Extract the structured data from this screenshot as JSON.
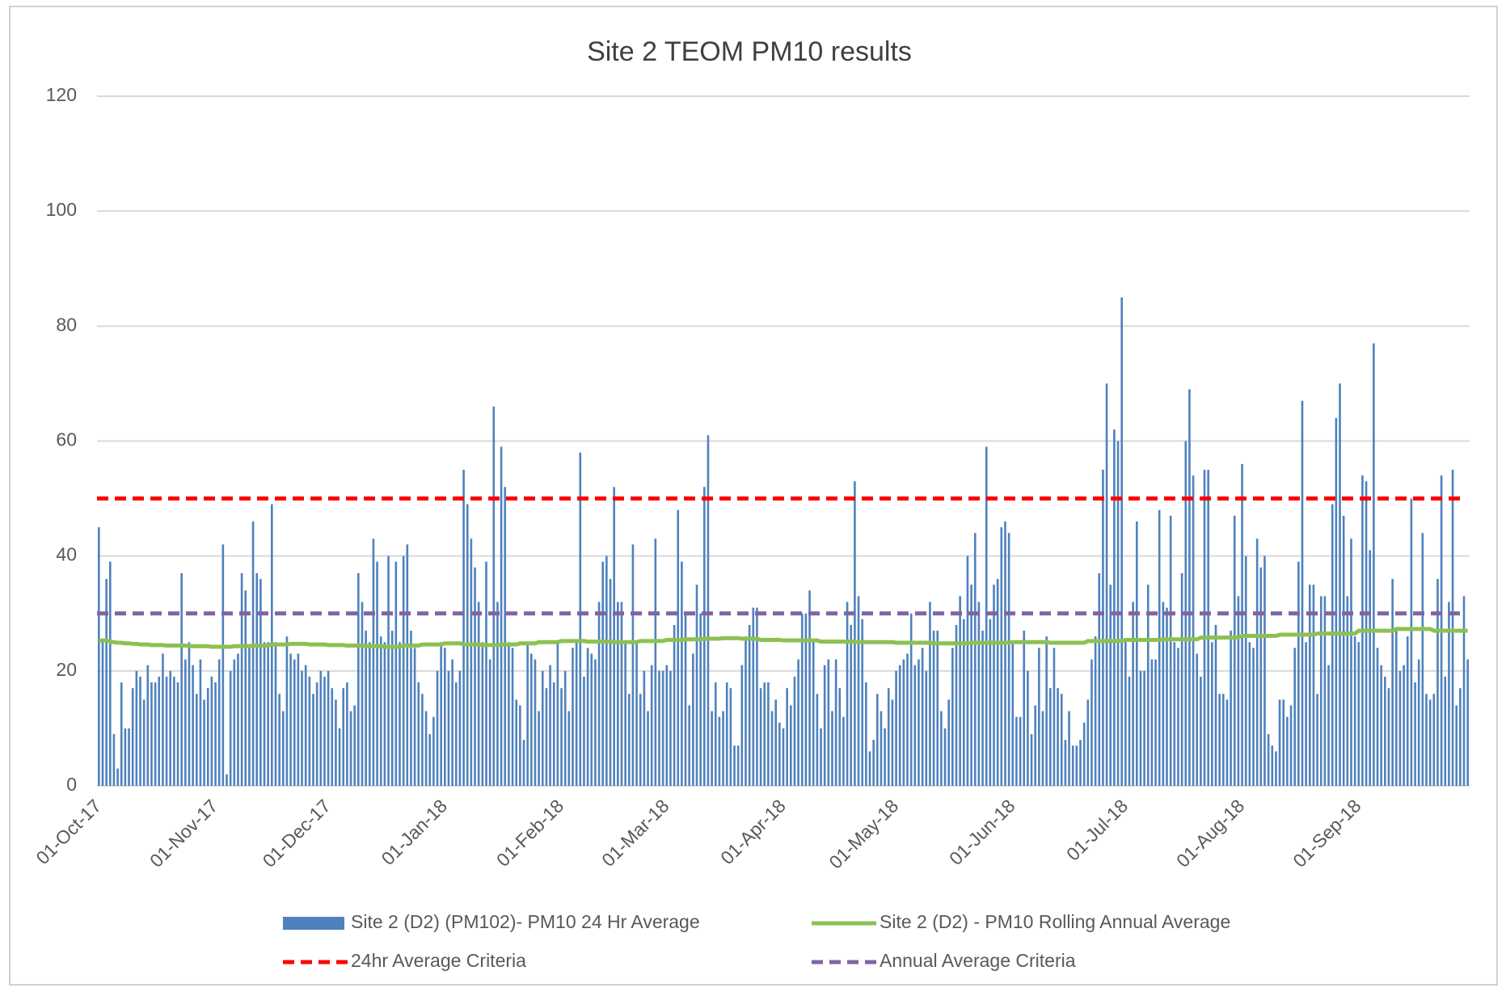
{
  "chart_data": {
    "type": "bar",
    "title": "Site 2 TEOM PM10 results",
    "categories": [
      "01-Oct-17",
      null,
      null,
      null,
      null,
      null,
      null,
      null,
      null,
      null,
      null,
      null,
      null,
      null,
      null,
      null,
      null,
      null,
      null,
      null,
      null,
      null,
      null,
      null,
      null,
      null,
      null,
      null,
      null,
      null,
      null,
      "01-Nov-17",
      null,
      null,
      null,
      null,
      null,
      null,
      null,
      null,
      null,
      null,
      null,
      null,
      null,
      null,
      null,
      null,
      null,
      null,
      null,
      null,
      null,
      null,
      null,
      null,
      null,
      null,
      null,
      null,
      null,
      "01-Dec-17",
      null,
      null,
      null,
      null,
      null,
      null,
      null,
      null,
      null,
      null,
      null,
      null,
      null,
      null,
      null,
      null,
      null,
      null,
      null,
      null,
      null,
      null,
      null,
      null,
      null,
      null,
      null,
      null,
      null,
      null,
      "01-Jan-18",
      null,
      null,
      null,
      null,
      null,
      null,
      null,
      null,
      null,
      null,
      null,
      null,
      null,
      null,
      null,
      null,
      null,
      null,
      null,
      null,
      null,
      null,
      null,
      null,
      null,
      null,
      null,
      null,
      null,
      null,
      "01-Feb-18",
      null,
      null,
      null,
      null,
      null,
      null,
      null,
      null,
      null,
      null,
      null,
      null,
      null,
      null,
      null,
      null,
      null,
      null,
      null,
      null,
      null,
      null,
      null,
      null,
      null,
      null,
      null,
      "01-Mar-18",
      null,
      null,
      null,
      null,
      null,
      null,
      null,
      null,
      null,
      null,
      null,
      null,
      null,
      null,
      null,
      null,
      null,
      null,
      null,
      null,
      null,
      null,
      null,
      null,
      null,
      null,
      null,
      null,
      null,
      null,
      "01-Apr-18",
      null,
      null,
      null,
      null,
      null,
      null,
      null,
      null,
      null,
      null,
      null,
      null,
      null,
      null,
      null,
      null,
      null,
      null,
      null,
      null,
      null,
      null,
      null,
      null,
      null,
      null,
      null,
      null,
      null,
      "01-May-18",
      null,
      null,
      null,
      null,
      null,
      null,
      null,
      null,
      null,
      null,
      null,
      null,
      null,
      null,
      null,
      null,
      null,
      null,
      null,
      null,
      null,
      null,
      null,
      null,
      null,
      null,
      null,
      null,
      null,
      null,
      "01-Jun-18",
      null,
      null,
      null,
      null,
      null,
      null,
      null,
      null,
      null,
      null,
      null,
      null,
      null,
      null,
      null,
      null,
      null,
      null,
      null,
      null,
      null,
      null,
      null,
      null,
      null,
      null,
      null,
      null,
      null,
      "01-Jul-18",
      null,
      null,
      null,
      null,
      null,
      null,
      null,
      null,
      null,
      null,
      null,
      null,
      null,
      null,
      null,
      null,
      null,
      null,
      null,
      null,
      null,
      null,
      null,
      null,
      null,
      null,
      null,
      null,
      null,
      null,
      "01-Aug-18",
      null,
      null,
      null,
      null,
      null,
      null,
      null,
      null,
      null,
      null,
      null,
      null,
      null,
      null,
      null,
      null,
      null,
      null,
      null,
      null,
      null,
      null,
      null,
      null,
      null,
      null,
      null,
      null,
      null,
      null,
      "01-Sep-18",
      null,
      null,
      null,
      null,
      null,
      null,
      null,
      null,
      null,
      null,
      null,
      null,
      null,
      null,
      null,
      null,
      null,
      null,
      null,
      null,
      null,
      null,
      null,
      null,
      null,
      null,
      null,
      null,
      null
    ],
    "series": [
      {
        "name": "Site 2 (D2) (PM102)- PM10 24 Hr Average",
        "color": "#4f81bd",
        "type": "bar",
        "values": [
          45,
          25,
          36,
          39,
          9,
          3,
          18,
          10,
          10,
          17,
          20,
          19,
          15,
          21,
          18,
          18,
          19,
          23,
          19,
          20,
          19,
          18,
          37,
          22,
          25,
          21,
          16,
          22,
          15,
          17,
          19,
          18,
          22,
          42,
          2,
          20,
          22,
          23,
          37,
          34,
          24,
          46,
          37,
          36,
          25,
          25,
          49,
          25,
          16,
          13,
          26,
          23,
          22,
          23,
          20,
          21,
          19,
          16,
          18,
          20,
          19,
          20,
          17,
          15,
          10,
          17,
          18,
          13,
          14,
          37,
          32,
          27,
          25,
          43,
          39,
          26,
          25,
          40,
          27,
          39,
          25,
          40,
          42,
          27,
          24,
          18,
          16,
          13,
          9,
          12,
          20,
          25,
          24,
          20,
          22,
          18,
          20,
          55,
          49,
          43,
          38,
          32,
          25,
          39,
          22,
          66,
          32,
          59,
          52,
          25,
          24,
          15,
          14,
          8,
          25,
          23,
          22,
          13,
          20,
          17,
          21,
          18,
          25,
          17,
          20,
          13,
          24,
          25,
          58,
          19,
          24,
          23,
          22,
          32,
          39,
          40,
          36,
          52,
          32,
          32,
          25,
          16,
          42,
          25,
          16,
          20,
          13,
          21,
          43,
          20,
          20,
          21,
          20,
          28,
          48,
          39,
          30,
          14,
          23,
          35,
          30,
          52,
          61,
          13,
          18,
          12,
          13,
          18,
          17,
          7,
          7,
          21,
          26,
          28,
          31,
          31,
          17,
          18,
          18,
          13,
          15,
          11,
          10,
          17,
          14,
          19,
          22,
          30,
          30,
          34,
          25,
          16,
          10,
          21,
          22,
          13,
          22,
          17,
          12,
          32,
          28,
          53,
          33,
          29,
          18,
          6,
          8,
          16,
          13,
          10,
          17,
          15,
          20,
          21,
          22,
          23,
          30,
          21,
          22,
          24,
          20,
          32,
          27,
          27,
          13,
          10,
          15,
          24,
          28,
          33,
          29,
          40,
          35,
          44,
          32,
          27,
          59,
          29,
          35,
          36,
          45,
          46,
          44,
          25,
          12,
          12,
          27,
          20,
          9,
          14,
          24,
          13,
          26,
          17,
          24,
          17,
          16,
          8,
          13,
          7,
          7,
          8,
          11,
          15,
          22,
          26,
          37,
          55,
          70,
          35,
          62,
          60,
          85,
          25,
          19,
          32,
          46,
          20,
          20,
          35,
          22,
          22,
          48,
          32,
          31,
          47,
          25,
          24,
          37,
          60,
          69,
          54,
          23,
          19,
          55,
          55,
          25,
          28,
          16,
          16,
          15,
          27,
          47,
          33,
          56,
          40,
          25,
          24,
          43,
          38,
          40,
          9,
          7,
          6,
          15,
          15,
          12,
          14,
          24,
          39,
          67,
          25,
          35,
          35,
          16,
          33,
          33,
          21,
          49,
          64,
          70,
          47,
          33,
          43,
          26,
          25,
          54,
          53,
          41,
          77,
          24,
          21,
          19,
          17,
          36,
          27,
          20,
          21,
          26,
          50,
          18,
          22,
          44,
          16,
          15,
          16,
          36,
          54,
          19,
          32,
          55,
          14,
          17,
          33,
          22
        ]
      },
      {
        "name": "Site 2 (D2) - PM10 Rolling Annual Average",
        "color": "#8cc152",
        "type": "line",
        "values": [
          25.2,
          25.3,
          25.3,
          25.1,
          25.0,
          24.9,
          24.9,
          24.8,
          24.8,
          24.7,
          24.7,
          24.6,
          24.6,
          24.6,
          24.5,
          24.5,
          24.5,
          24.5,
          24.4,
          24.4,
          24.4,
          24.4,
          24.4,
          24.4,
          24.3,
          24.3,
          24.3,
          24.3,
          24.3,
          24.3,
          24.2,
          24.2,
          24.2,
          24.2,
          24.2,
          24.2,
          24.3,
          24.3,
          24.3,
          24.3,
          24.3,
          24.4,
          24.4,
          24.4,
          24.4,
          24.4,
          24.6,
          24.6,
          24.6,
          24.6,
          24.6,
          24.7,
          24.7,
          24.7,
          24.7,
          24.7,
          24.6,
          24.6,
          24.6,
          24.6,
          24.6,
          24.5,
          24.5,
          24.5,
          24.5,
          24.5,
          24.4,
          24.4,
          24.4,
          24.4,
          24.4,
          24.3,
          24.3,
          24.3,
          24.3,
          24.3,
          24.2,
          24.2,
          24.2,
          24.2,
          24.2,
          24.4,
          24.4,
          24.4,
          24.4,
          24.4,
          24.6,
          24.6,
          24.6,
          24.6,
          24.6,
          24.6,
          24.8,
          24.8,
          24.8,
          24.8,
          24.8,
          24.6,
          24.6,
          24.6,
          24.6,
          24.6,
          24.5,
          24.5,
          24.5,
          24.5,
          24.5,
          24.6,
          24.6,
          24.6,
          24.6,
          24.6,
          24.8,
          24.8,
          24.8,
          24.8,
          24.8,
          25.0,
          25.0,
          25.0,
          25.0,
          25.0,
          25.0,
          25.2,
          25.2,
          25.2,
          25.2,
          25.2,
          25.2,
          25.2,
          25.1,
          25.1,
          25.1,
          25.1,
          25.1,
          25.1,
          25.1,
          25.0,
          25.0,
          25.0,
          25.0,
          25.0,
          25.0,
          25.0,
          25.2,
          25.2,
          25.2,
          25.2,
          25.2,
          25.2,
          25.2,
          25.4,
          25.4,
          25.4,
          25.4,
          25.4,
          25.5,
          25.5,
          25.5,
          25.5,
          25.5,
          25.6,
          25.6,
          25.6,
          25.6,
          25.6,
          25.7,
          25.7,
          25.7,
          25.7,
          25.7,
          25.6,
          25.6,
          25.6,
          25.6,
          25.6,
          25.4,
          25.4,
          25.4,
          25.4,
          25.4,
          25.4,
          25.3,
          25.3,
          25.3,
          25.3,
          25.3,
          25.3,
          25.3,
          25.3,
          25.3,
          25.3,
          25.1,
          25.1,
          25.1,
          25.1,
          25.1,
          25.1,
          25.1,
          25.1,
          25.1,
          25.1,
          25.0,
          25.0,
          25.0,
          25.0,
          25.0,
          25.0,
          25.0,
          25.0,
          25.0,
          25.0,
          24.9,
          24.9,
          24.9,
          24.9,
          24.9,
          24.9,
          24.9,
          24.9,
          24.9,
          24.9,
          24.8,
          24.8,
          24.8,
          24.8,
          24.8,
          24.8,
          24.8,
          24.8,
          24.8,
          24.8,
          24.9,
          24.9,
          24.9,
          24.9,
          24.9,
          24.9,
          24.9,
          24.9,
          24.9,
          24.9,
          24.9,
          25.0,
          25.0,
          25.0,
          25.0,
          25.0,
          25.0,
          25.0,
          25.0,
          25.0,
          25.0,
          24.9,
          24.9,
          24.9,
          24.9,
          24.9,
          24.9,
          24.9,
          24.9,
          24.9,
          24.9,
          25.2,
          25.2,
          25.2,
          25.2,
          25.2,
          25.2,
          25.2,
          25.2,
          25.2,
          25.2,
          25.4,
          25.4,
          25.4,
          25.4,
          25.4,
          25.4,
          25.4,
          25.4,
          25.4,
          25.4,
          25.5,
          25.5,
          25.5,
          25.5,
          25.5,
          25.5,
          25.5,
          25.5,
          25.5,
          25.5,
          25.8,
          25.8,
          25.8,
          25.8,
          25.8,
          25.8,
          25.8,
          25.8,
          25.8,
          25.8,
          25.8,
          26.1,
          26.1,
          26.1,
          26.1,
          26.1,
          26.1,
          26.1,
          26.1,
          26.1,
          26.1,
          26.3,
          26.3,
          26.3,
          26.3,
          26.3,
          26.3,
          26.3,
          26.3,
          26.3,
          26.3,
          26.5,
          26.5,
          26.5,
          26.5,
          26.5,
          26.5,
          26.5,
          26.5,
          26.5,
          26.5,
          26.5,
          27.0,
          27.0,
          27.0,
          27.0,
          27.0,
          27.0,
          27.0,
          27.0,
          27.0,
          27.0,
          27.3,
          27.3,
          27.3,
          27.3,
          27.3,
          27.3,
          27.3,
          27.3,
          27.3,
          27.3,
          27.0,
          27.0,
          27.0,
          27.0,
          27.0,
          27.0,
          27.0,
          27.0,
          27.0,
          27.0
        ]
      }
    ],
    "reference_lines": [
      {
        "name": "24hr Average Criteria",
        "value": 50,
        "color": "#ff0000"
      },
      {
        "name": "Annual Average Criteria",
        "value": 30,
        "color": "#8064a2"
      }
    ],
    "ylim": [
      0,
      120
    ],
    "yticks": [
      0,
      20,
      40,
      60,
      80,
      100,
      120
    ],
    "grid": true
  }
}
